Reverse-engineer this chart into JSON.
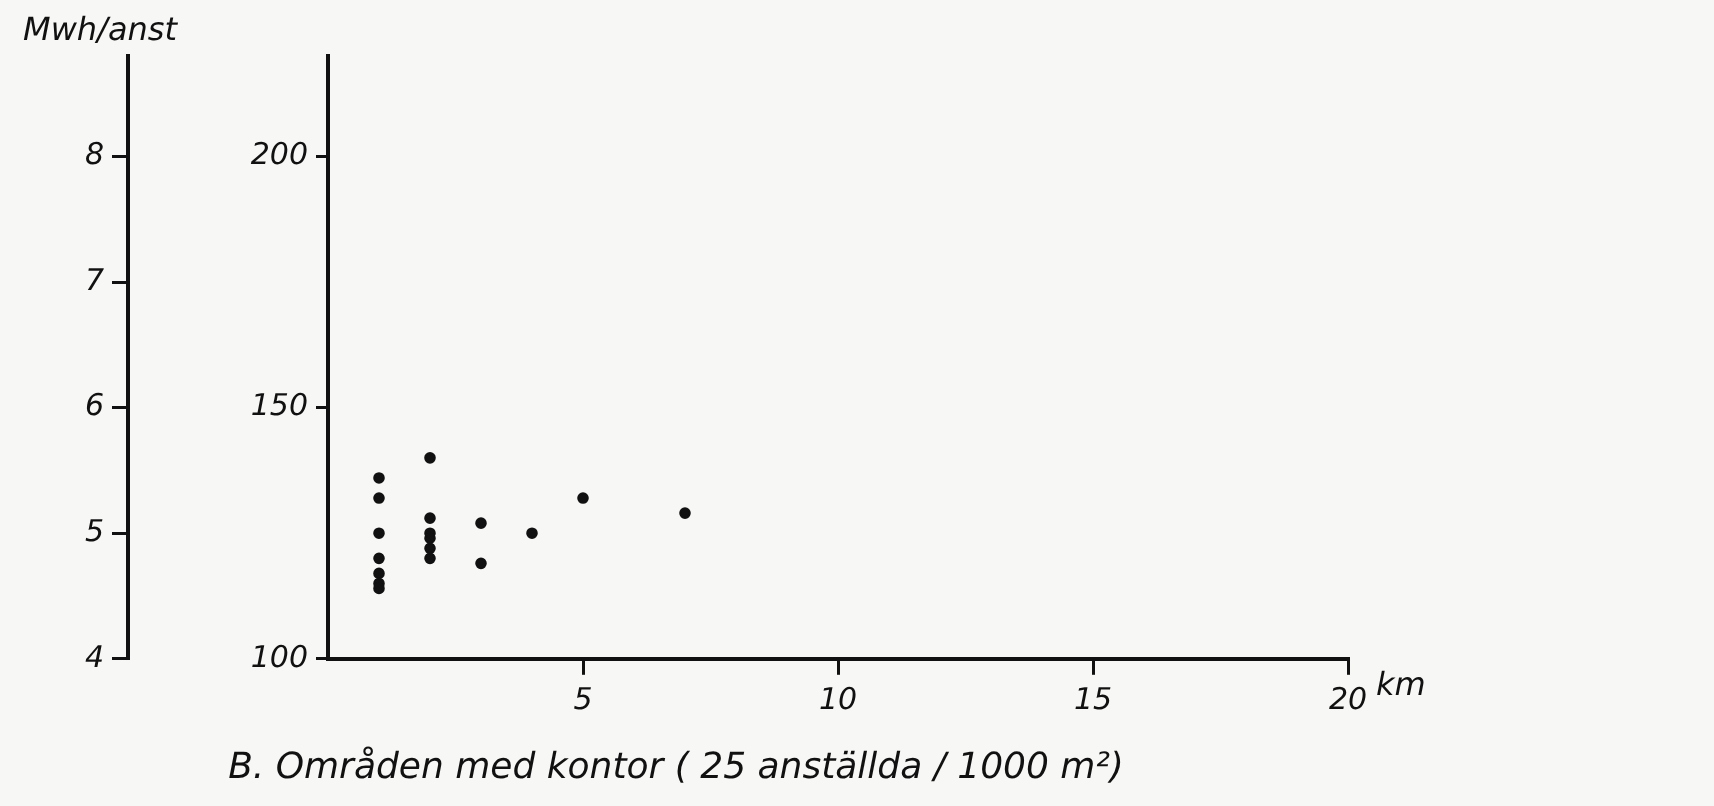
{
  "chart_data": {
    "type": "scatter",
    "title": "B. Områden med kontor ( 25 anställda / 1000 m²)",
    "xlabel": "km",
    "y2label": "Mwh/anst",
    "series": [
      {
        "color": "#111111",
        "x": [
          1,
          1,
          1,
          1,
          1,
          1,
          1,
          2,
          2,
          2,
          2,
          2,
          2,
          3,
          3,
          4,
          5,
          7
        ],
        "values": [
          136,
          132,
          125,
          120,
          117,
          115,
          114,
          140,
          128,
          125,
          124,
          122,
          120,
          127,
          119,
          125,
          132,
          129
        ]
      }
    ],
    "xlim": [
      0,
      20
    ],
    "xticks": [
      5,
      10,
      15,
      20
    ],
    "ylim": [
      100,
      220
    ],
    "yticks": [
      100,
      150,
      200
    ],
    "y2lim": [
      4,
      8.8
    ],
    "y2ticks": [
      4,
      5,
      6,
      7,
      8
    ],
    "marker": "circle",
    "grid": false
  }
}
